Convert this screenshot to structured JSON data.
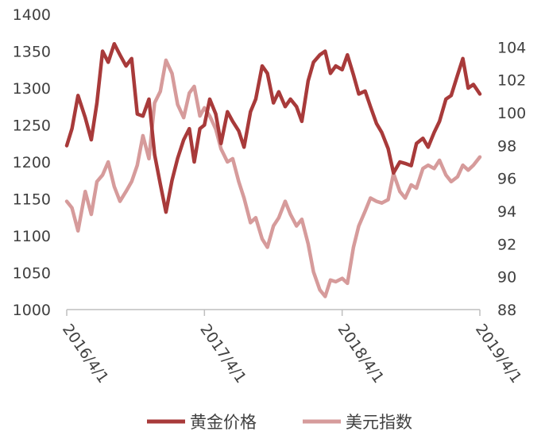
{
  "chart_data": {
    "type": "line",
    "title": "",
    "xlabel": "",
    "ylabel_left": "",
    "ylabel_right": "",
    "x_ticks": [
      "2016/4/1",
      "2017/4/1",
      "2018/4/1",
      "2019/4/1"
    ],
    "x_range": [
      "2016/4/1",
      "2019/4/1"
    ],
    "y_left": {
      "min": 1000,
      "max": 1400,
      "ticks": [
        1000,
        1050,
        1100,
        1150,
        1200,
        1250,
        1300,
        1350,
        1400
      ]
    },
    "y_right": {
      "min": 88,
      "max": 106,
      "ticks": [
        88,
        90,
        92,
        94,
        96,
        98,
        100,
        102,
        104
      ]
    },
    "legend_position": "bottom",
    "grid": false,
    "series": [
      {
        "name": "黄金价格",
        "axis": "left",
        "color": "#A83A3A",
        "points": [
          [
            "2016/4/1",
            1222
          ],
          [
            "2016/4/15",
            1245
          ],
          [
            "2016/5/1",
            1290
          ],
          [
            "2016/5/20",
            1260
          ],
          [
            "2016/6/5",
            1230
          ],
          [
            "2016/6/20",
            1280
          ],
          [
            "2016/7/5",
            1350
          ],
          [
            "2016/7/20",
            1335
          ],
          [
            "2016/8/5",
            1360
          ],
          [
            "2016/8/20",
            1345
          ],
          [
            "2016/9/5",
            1330
          ],
          [
            "2016/9/20",
            1340
          ],
          [
            "2016/10/5",
            1265
          ],
          [
            "2016/10/20",
            1262
          ],
          [
            "2016/11/5",
            1285
          ],
          [
            "2016/11/20",
            1210
          ],
          [
            "2016/12/5",
            1170
          ],
          [
            "2016/12/20",
            1132
          ],
          [
            "2017/1/5",
            1175
          ],
          [
            "2017/1/20",
            1205
          ],
          [
            "2017/2/5",
            1230
          ],
          [
            "2017/2/20",
            1245
          ],
          [
            "2017/3/5",
            1200
          ],
          [
            "2017/3/20",
            1245
          ],
          [
            "2017/4/1",
            1250
          ],
          [
            "2017/4/15",
            1285
          ],
          [
            "2017/5/1",
            1265
          ],
          [
            "2017/5/15",
            1225
          ],
          [
            "2017/6/1",
            1268
          ],
          [
            "2017/6/15",
            1255
          ],
          [
            "2017/7/1",
            1242
          ],
          [
            "2017/7/15",
            1220
          ],
          [
            "2017/8/1",
            1268
          ],
          [
            "2017/8/15",
            1285
          ],
          [
            "2017/9/1",
            1330
          ],
          [
            "2017/9/15",
            1320
          ],
          [
            "2017/10/1",
            1280
          ],
          [
            "2017/10/15",
            1295
          ],
          [
            "2017/11/1",
            1275
          ],
          [
            "2017/11/15",
            1285
          ],
          [
            "2017/12/1",
            1275
          ],
          [
            "2017/12/15",
            1255
          ],
          [
            "2018/1/1",
            1310
          ],
          [
            "2018/1/15",
            1335
          ],
          [
            "2018/2/1",
            1345
          ],
          [
            "2018/2/15",
            1350
          ],
          [
            "2018/3/1",
            1320
          ],
          [
            "2018/3/15",
            1330
          ],
          [
            "2018/4/1",
            1325
          ],
          [
            "2018/4/15",
            1345
          ],
          [
            "2018/5/1",
            1318
          ],
          [
            "2018/5/15",
            1292
          ],
          [
            "2018/6/1",
            1296
          ],
          [
            "2018/6/15",
            1275
          ],
          [
            "2018/7/1",
            1252
          ],
          [
            "2018/7/15",
            1240
          ],
          [
            "2018/8/1",
            1218
          ],
          [
            "2018/8/15",
            1185
          ],
          [
            "2018/9/1",
            1200
          ],
          [
            "2018/9/15",
            1198
          ],
          [
            "2018/10/1",
            1195
          ],
          [
            "2018/10/15",
            1225
          ],
          [
            "2018/11/1",
            1232
          ],
          [
            "2018/11/15",
            1220
          ],
          [
            "2018/12/1",
            1240
          ],
          [
            "2018/12/15",
            1255
          ],
          [
            "2019/1/1",
            1285
          ],
          [
            "2019/1/15",
            1290
          ],
          [
            "2019/2/1",
            1318
          ],
          [
            "2019/2/15",
            1340
          ],
          [
            "2019/3/1",
            1300
          ],
          [
            "2019/3/15",
            1305
          ],
          [
            "2019/4/1",
            1292
          ]
        ]
      },
      {
        "name": "美元指数",
        "axis": "right",
        "color": "#D69B9B",
        "points": [
          [
            "2016/4/1",
            94.6
          ],
          [
            "2016/4/15",
            94.2
          ],
          [
            "2016/5/1",
            92.8
          ],
          [
            "2016/5/20",
            95.2
          ],
          [
            "2016/6/5",
            93.8
          ],
          [
            "2016/6/20",
            95.8
          ],
          [
            "2016/7/5",
            96.2
          ],
          [
            "2016/7/20",
            97.0
          ],
          [
            "2016/8/5",
            95.5
          ],
          [
            "2016/8/20",
            94.6
          ],
          [
            "2016/9/5",
            95.2
          ],
          [
            "2016/9/20",
            95.8
          ],
          [
            "2016/10/5",
            96.8
          ],
          [
            "2016/10/20",
            98.6
          ],
          [
            "2016/11/5",
            97.2
          ],
          [
            "2016/11/20",
            100.6
          ],
          [
            "2016/12/5",
            101.3
          ],
          [
            "2016/12/20",
            103.2
          ],
          [
            "2017/1/5",
            102.4
          ],
          [
            "2017/1/20",
            100.5
          ],
          [
            "2017/2/5",
            99.7
          ],
          [
            "2017/2/20",
            101.2
          ],
          [
            "2017/3/5",
            101.6
          ],
          [
            "2017/3/20",
            99.8
          ],
          [
            "2017/4/1",
            100.3
          ],
          [
            "2017/4/15",
            99.8
          ],
          [
            "2017/5/1",
            99.0
          ],
          [
            "2017/5/15",
            97.8
          ],
          [
            "2017/6/1",
            97.0
          ],
          [
            "2017/6/15",
            97.2
          ],
          [
            "2017/7/1",
            95.8
          ],
          [
            "2017/7/15",
            94.8
          ],
          [
            "2017/8/1",
            93.3
          ],
          [
            "2017/8/15",
            93.6
          ],
          [
            "2017/9/1",
            92.3
          ],
          [
            "2017/9/15",
            91.8
          ],
          [
            "2017/10/1",
            93.1
          ],
          [
            "2017/10/15",
            93.6
          ],
          [
            "2017/11/1",
            94.6
          ],
          [
            "2017/11/15",
            93.8
          ],
          [
            "2017/12/1",
            93.1
          ],
          [
            "2017/12/15",
            93.5
          ],
          [
            "2018/1/1",
            92.0
          ],
          [
            "2018/1/15",
            90.3
          ],
          [
            "2018/2/1",
            89.2
          ],
          [
            "2018/2/15",
            88.8
          ],
          [
            "2018/3/1",
            89.8
          ],
          [
            "2018/3/15",
            89.7
          ],
          [
            "2018/4/1",
            89.9
          ],
          [
            "2018/4/15",
            89.6
          ],
          [
            "2018/5/1",
            91.8
          ],
          [
            "2018/5/15",
            93.1
          ],
          [
            "2018/6/1",
            94.0
          ],
          [
            "2018/6/15",
            94.8
          ],
          [
            "2018/7/1",
            94.6
          ],
          [
            "2018/7/15",
            94.5
          ],
          [
            "2018/8/1",
            94.7
          ],
          [
            "2018/8/15",
            96.3
          ],
          [
            "2018/9/1",
            95.2
          ],
          [
            "2018/9/15",
            94.8
          ],
          [
            "2018/10/1",
            95.6
          ],
          [
            "2018/10/15",
            95.4
          ],
          [
            "2018/11/1",
            96.6
          ],
          [
            "2018/11/15",
            96.8
          ],
          [
            "2018/12/1",
            96.6
          ],
          [
            "2018/12/15",
            97.1
          ],
          [
            "2019/1/1",
            96.2
          ],
          [
            "2019/1/15",
            95.8
          ],
          [
            "2019/2/1",
            96.1
          ],
          [
            "2019/2/15",
            96.8
          ],
          [
            "2019/3/1",
            96.5
          ],
          [
            "2019/3/15",
            96.8
          ],
          [
            "2019/4/1",
            97.3
          ]
        ]
      }
    ]
  }
}
